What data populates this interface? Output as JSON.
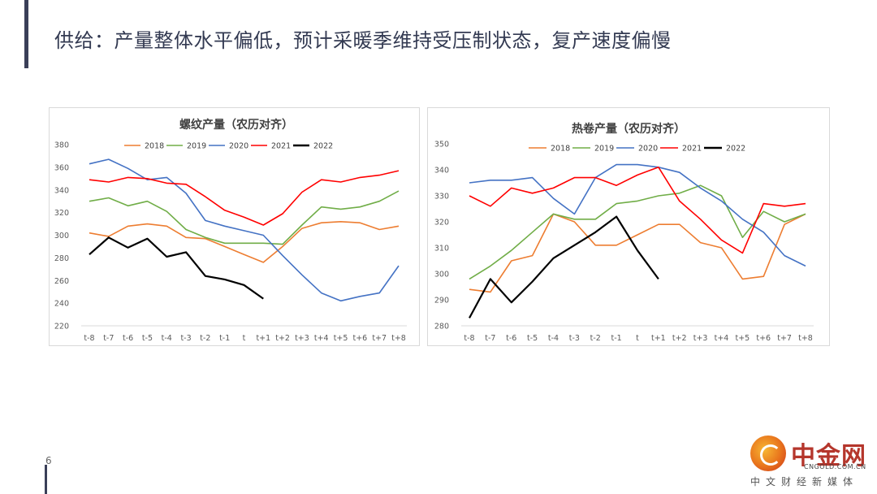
{
  "slide": {
    "title": "供给：产量整体水平偏低，预计采暖季维持受压制状态，复产速度偏慢",
    "page_number": "6"
  },
  "watermark": {
    "name": "中金网",
    "domain": "CNGOLD.COM.CN",
    "slogan": "中文财经新媒体"
  },
  "chart_data": [
    {
      "type": "line",
      "title": "螺纹产量（农历对齐）",
      "xlabel": "",
      "ylabel": "",
      "categories": [
        "t-8",
        "t-7",
        "t-6",
        "t-5",
        "t-4",
        "t-3",
        "t-2",
        "t-1",
        "t",
        "t+1",
        "t+2",
        "t+3",
        "t+4",
        "t+5",
        "t+6",
        "t+7",
        "t+8"
      ],
      "ylim": [
        220,
        380
      ],
      "yticks": [
        220,
        240,
        260,
        280,
        300,
        320,
        340,
        360,
        380
      ],
      "legend_position": "top",
      "grid": false,
      "series": [
        {
          "name": "2018",
          "color": "#ed7d31",
          "values": [
            302,
            299,
            308,
            310,
            308,
            298,
            297,
            290,
            283,
            276,
            290,
            306,
            311,
            312,
            311,
            305,
            308
          ]
        },
        {
          "name": "2019",
          "color": "#70ad47",
          "values": [
            330,
            333,
            326,
            330,
            321,
            305,
            298,
            293,
            293,
            293,
            292,
            309,
            325,
            323,
            325,
            330,
            339
          ]
        },
        {
          "name": "2020",
          "color": "#4472c4",
          "values": [
            363,
            367,
            359,
            349,
            351,
            337,
            313,
            308,
            304,
            300,
            282,
            265,
            249,
            242,
            246,
            249,
            273
          ]
        },
        {
          "name": "2021",
          "color": "#ff0000",
          "values": [
            349,
            347,
            351,
            350,
            346,
            345,
            334,
            322,
            316,
            309,
            319,
            338,
            349,
            347,
            351,
            353,
            357
          ]
        },
        {
          "name": "2022",
          "color": "#000000",
          "values": [
            283,
            298,
            289,
            297,
            281,
            285,
            264,
            261,
            256,
            244,
            null,
            null,
            null,
            null,
            null,
            null,
            null
          ]
        }
      ]
    },
    {
      "type": "line",
      "title": "热卷产量（农历对齐）",
      "xlabel": "",
      "ylabel": "",
      "categories": [
        "t-8",
        "t-7",
        "t-6",
        "t-5",
        "t-4",
        "t-3",
        "t-2",
        "t-1",
        "t",
        "t+1",
        "t+2",
        "t+3",
        "t+4",
        "t+5",
        "t+6",
        "t+7",
        "t+8"
      ],
      "ylim": [
        280,
        350
      ],
      "yticks": [
        280,
        290,
        300,
        310,
        320,
        330,
        340,
        350
      ],
      "legend_position": "top",
      "grid": false,
      "series": [
        {
          "name": "2018",
          "color": "#ed7d31",
          "values": [
            294,
            293,
            305,
            307,
            323,
            320,
            311,
            311,
            315,
            319,
            319,
            312,
            310,
            298,
            299,
            319,
            323
          ]
        },
        {
          "name": "2019",
          "color": "#70ad47",
          "values": [
            298,
            303,
            309,
            316,
            323,
            321,
            321,
            327,
            328,
            330,
            331,
            334,
            330,
            314,
            324,
            320,
            323
          ]
        },
        {
          "name": "2020",
          "color": "#4472c4",
          "values": [
            335,
            336,
            336,
            337,
            329,
            323,
            337,
            342,
            342,
            341,
            339,
            333,
            328,
            321,
            316,
            307,
            303
          ]
        },
        {
          "name": "2021",
          "color": "#ff0000",
          "values": [
            330,
            326,
            333,
            331,
            333,
            337,
            337,
            334,
            338,
            341,
            328,
            321,
            313,
            308,
            327,
            326,
            327
          ]
        },
        {
          "name": "2022",
          "color": "#000000",
          "values": [
            283,
            298,
            289,
            297,
            306,
            311,
            316,
            322,
            309,
            298,
            null,
            null,
            null,
            null,
            null,
            null,
            null
          ]
        }
      ]
    }
  ]
}
